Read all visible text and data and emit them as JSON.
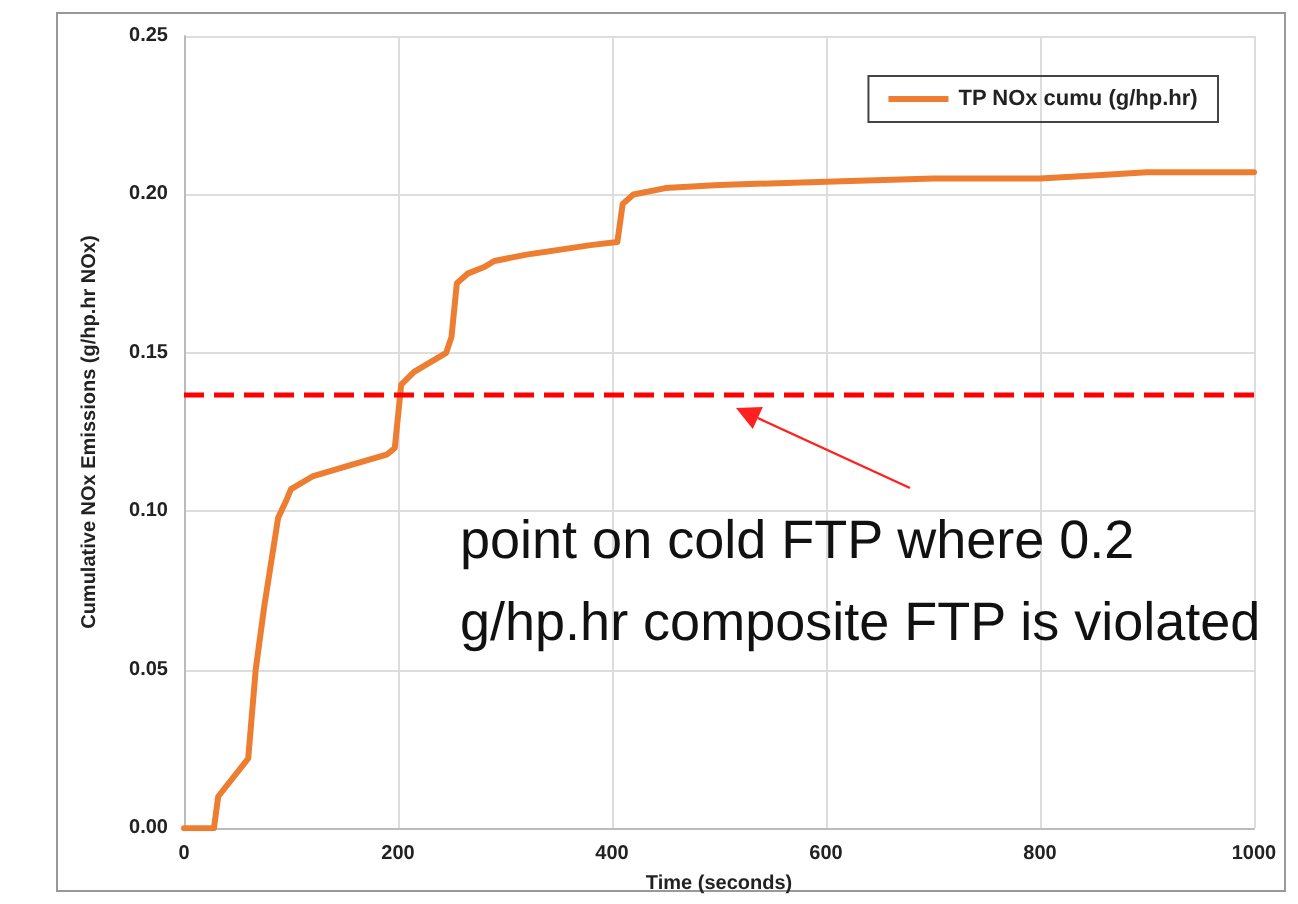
{
  "chart_data": {
    "type": "line",
    "xlabel": "Time (seconds)",
    "ylabel": "Cumulative NOx Emissions (g/hp.hr NOx)",
    "x": [
      0,
      28,
      32,
      60,
      67,
      75,
      88,
      95,
      100,
      120,
      150,
      190,
      197,
      203,
      215,
      245,
      250,
      255,
      265,
      280,
      290,
      320,
      380,
      405,
      410,
      420,
      450,
      500,
      600,
      700,
      800,
      850,
      900,
      1000
    ],
    "series": [
      {
        "name": "TP NOx cumu (g/hp.hr)",
        "color": "#ed7d31",
        "values": [
          0,
          0,
          0.01,
          0.022,
          0.05,
          0.07,
          0.098,
          0.103,
          0.107,
          0.111,
          0.114,
          0.118,
          0.12,
          0.14,
          0.144,
          0.15,
          0.155,
          0.172,
          0.175,
          0.177,
          0.179,
          0.181,
          0.184,
          0.185,
          0.197,
          0.2,
          0.202,
          0.203,
          0.204,
          0.205,
          0.205,
          0.206,
          0.207,
          0.207
        ]
      }
    ],
    "xlim": [
      0,
      1000
    ],
    "xticks": [
      0,
      200,
      400,
      600,
      800,
      1000
    ],
    "ylim": [
      0,
      0.25
    ],
    "yticks": [
      {
        "value": 0,
        "label": "0.00"
      },
      {
        "value": 0.05,
        "label": "0.05"
      },
      {
        "value": 0.1,
        "label": "0.10"
      },
      {
        "value": 0.15,
        "label": "0.15"
      },
      {
        "value": 0.2,
        "label": "0.20"
      },
      {
        "value": 0.25,
        "label": "0.25"
      }
    ],
    "ref_lines": [
      {
        "axis": "y",
        "value": 0.137,
        "color": "#ff0000",
        "line_style": "dashed"
      }
    ],
    "annotations": [
      "point on cold FTP where 0.2 g/hp.hr composite FTP is violated"
    ],
    "grid": true,
    "legend": "top right",
    "marker": "none",
    "line_style": "solid"
  }
}
